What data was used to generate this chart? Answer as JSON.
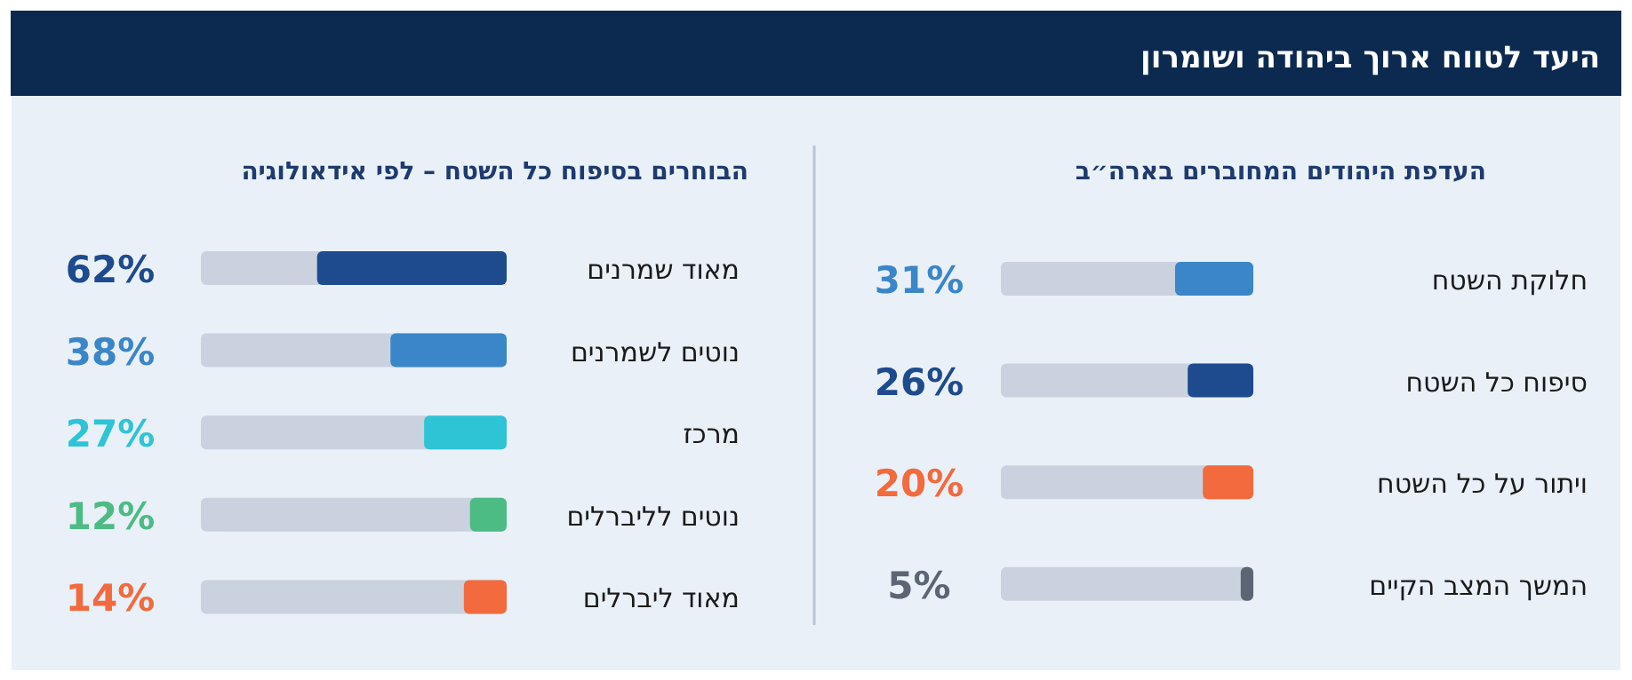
{
  "chart_data": [
    {
      "type": "bar",
      "orientation": "horizontal",
      "title": "היעד לטווח ארוך ביהודה ושומרון",
      "subtitle": "העדפת היהודים המחוברים בארה״ב",
      "categories": [
        "חלוקת השטח",
        "סיפוח כל השטח",
        "ויתור על כל השטח",
        "המשך המצב הקיים"
      ],
      "values": [
        31,
        26,
        20,
        5
      ],
      "colors": [
        "#3a86c8",
        "#1e4a8e",
        "#f26a3d",
        "#5b6573"
      ],
      "value_labels": [
        "31%",
        "26%",
        "20%",
        "5%"
      ]
    },
    {
      "type": "bar",
      "orientation": "horizontal",
      "title": "הבוחרים בסיפוח כל השטח – לפי אידאולוגיה",
      "categories": [
        "מאוד שמרנים",
        "נוטים לשמרנים",
        "מרכז",
        "נוטים לליברלים",
        "מאוד ליברלים"
      ],
      "values": [
        62,
        38,
        27,
        12,
        14
      ],
      "colors": [
        "#1e4a8e",
        "#3a86c8",
        "#2ec4d6",
        "#4cbb84",
        "#f26a3d"
      ],
      "value_labels": [
        "62%",
        "38%",
        "27%",
        "12%",
        "14%"
      ]
    }
  ]
}
